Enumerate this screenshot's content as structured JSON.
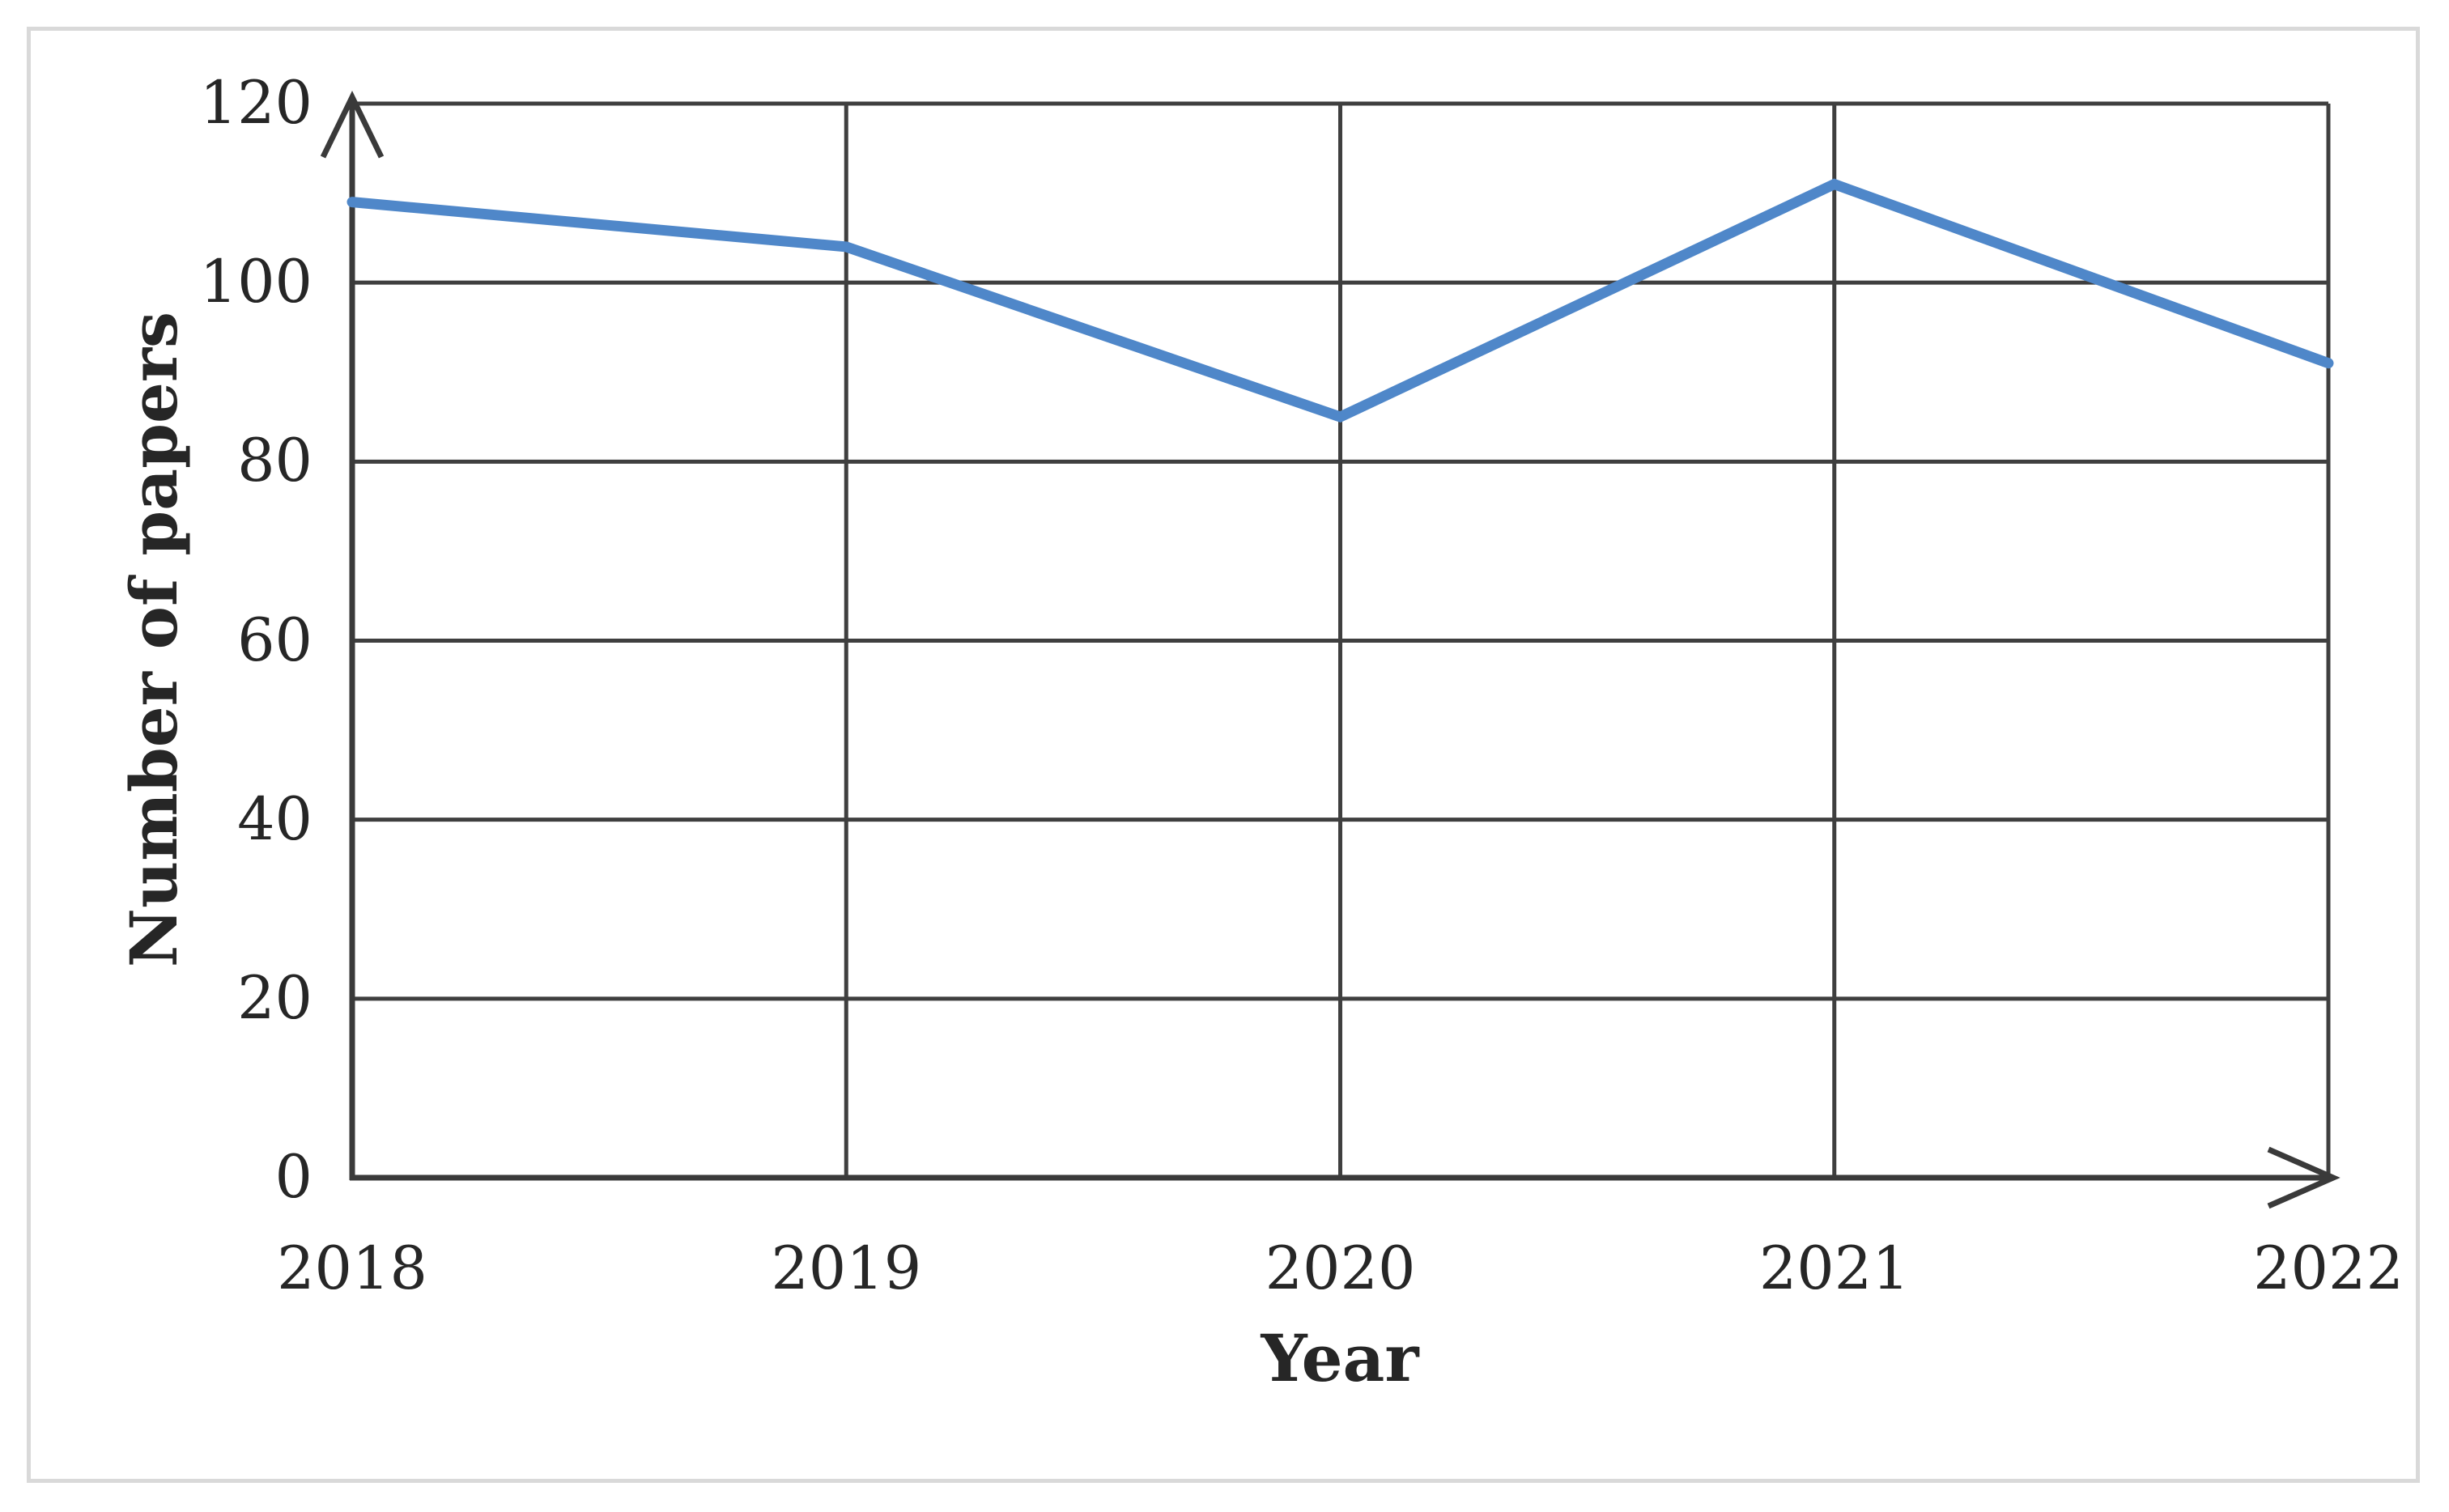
{
  "figure": {
    "background": "#ffffff",
    "border_color": "#d9d9d9"
  },
  "chart_data": {
    "type": "line",
    "title": "",
    "categories": [
      "2018",
      "2019",
      "2020",
      "2021",
      "2022"
    ],
    "values": [
      109,
      104,
      85,
      111,
      91
    ],
    "xlabel": "Year",
    "ylabel": "Number of papers",
    "ylim": [
      0,
      120
    ],
    "y_ticks": [
      0,
      20,
      40,
      60,
      80,
      100,
      120
    ],
    "grid": true,
    "legend": "none",
    "axis_arrows": true,
    "line_color": "#4f87c9",
    "gridline_color": "#3f3f3f",
    "axis_color": "#3a3a3a",
    "text_color": "#262626"
  }
}
